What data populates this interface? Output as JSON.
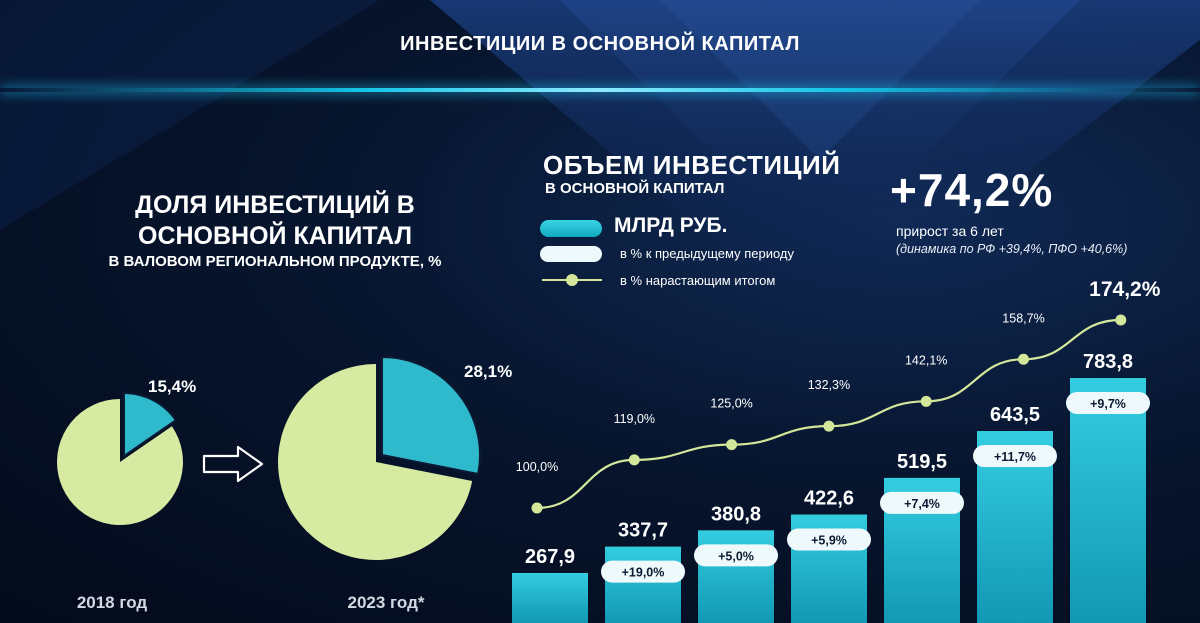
{
  "title": "ИНВЕСТИЦИИ В ОСНОВНОЙ КАПИТАЛ",
  "colors": {
    "accent": "#13c4e6",
    "bar": "#1fbcd0",
    "pie_main": "#d6eaa2",
    "pie_slice": "#2fb9cc",
    "line": "#d3e69a",
    "pill": "#eef9fb",
    "pill_text": "#0b1a33"
  },
  "share": {
    "title_line1": "ДОЛЯ ИНВЕСТИЦИЙ В",
    "title_line2": "ОСНОВНОЙ КАПИТАЛ",
    "subtitle": "В ВАЛОВОМ РЕГИОНАЛЬНОМ ПРОДУКТЕ, %",
    "arrow_icon": "right-arrow-icon"
  },
  "volume": {
    "title": "ОБЪЕМ ИНВЕСТИЦИЙ",
    "subtitle": "В ОСНОВНОЙ КАПИТАЛ",
    "legend": {
      "bar": "МЛРД РУБ.",
      "pill": "в % к предыдущему периоду",
      "line": "в % нарастающим итогом"
    }
  },
  "growth": {
    "value": "+74,2%",
    "caption": "прирост за 6 лет",
    "note": "(динамика по РФ +39,4%,  ПФО +40,6%)"
  },
  "chart_data": [
    {
      "type": "pie",
      "slices": [
        {
          "value": 15.4,
          "label": "15,4%"
        },
        {
          "value": 84.6,
          "label": ""
        }
      ],
      "xlabel": "2018 год"
    },
    {
      "type": "pie",
      "slices": [
        {
          "value": 28.1,
          "label": "28,1%"
        },
        {
          "value": 71.9,
          "label": ""
        }
      ],
      "xlabel": "2023 год*"
    },
    {
      "type": "bar",
      "values": [
        267.9,
        337.7,
        380.8,
        422.6,
        519.5,
        643.5,
        783.8
      ],
      "value_labels": [
        "267,9",
        "337,7",
        "380,8",
        "422,6",
        "519,5",
        "643,5",
        "783,8"
      ],
      "series": [
        {
          "name": "МЛРД РУБ.",
          "values": [
            267.9,
            337.7,
            380.8,
            422.6,
            519.5,
            643.5,
            783.8
          ]
        },
        {
          "name": "в % к предыдущему периоду",
          "values": [
            null,
            19.0,
            5.0,
            5.9,
            7.4,
            11.7,
            9.7
          ],
          "labels": [
            "",
            "+19,0%",
            "+5,0%",
            "+5,9%",
            "+7,4%",
            "+11,7%",
            "+9,7%"
          ]
        },
        {
          "name": "в % нарастающим итогом",
          "type": "line",
          "values": [
            100.0,
            119.0,
            125.0,
            132.3,
            142.1,
            158.7,
            174.2
          ],
          "labels": [
            "100,0%",
            "119,0%",
            "125,0%",
            "132,3%",
            "142,1%",
            "158,7%",
            "174,2%"
          ]
        }
      ],
      "legend": "top-left",
      "grid": false
    }
  ]
}
